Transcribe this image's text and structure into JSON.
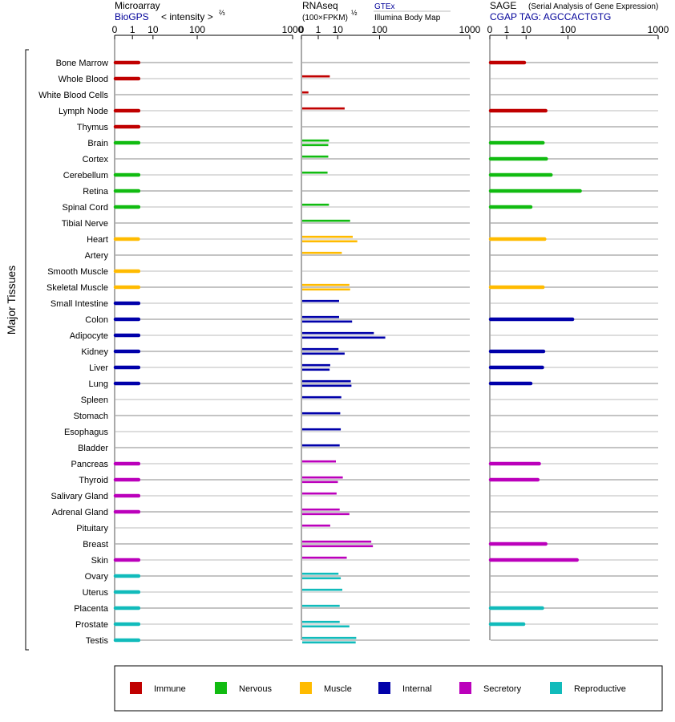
{
  "panels": {
    "microarray": {
      "title": "Microarray",
      "source": "BioGPS",
      "scale_label": "< intensity >",
      "scale_exp": "⅔"
    },
    "rnaseq": {
      "title": "RNAseq",
      "unit_label": "(100×FPKM)",
      "unit_exp": "½",
      "source1": "GTEx",
      "source2": "Illumina Body Map"
    },
    "sage": {
      "title": "SAGE",
      "subtitle": "(Serial Analysis of Gene Expression)",
      "tag_label": "CGAP TAG: AGCCACTGTG"
    }
  },
  "y_axis_label": "Major Tissues",
  "colors": {
    "Immune": "#c00000",
    "Nervous": "#11bb11",
    "Muscle": "#ffbb00",
    "Internal": "#0000aa",
    "Secretory": "#bb00bb",
    "Reproductive": "#11bbbb"
  },
  "legend": [
    "Immune",
    "Nervous",
    "Muscle",
    "Internal",
    "Secretory",
    "Reproductive"
  ],
  "chart_data": {
    "type": "bar",
    "x_scale": "power",
    "x_ticks": [
      "0",
      "1",
      "10",
      "100",
      "1000"
    ],
    "xlim": [
      0,
      1000
    ],
    "categories": [
      "Bone Marrow",
      "Whole Blood",
      "White Blood Cells",
      "Lymph Node",
      "Thymus",
      "Brain",
      "Cortex",
      "Cerebellum",
      "Retina",
      "Spinal Cord",
      "Tibial Nerve",
      "Heart",
      "Artery",
      "Smooth Muscle",
      "Skeletal Muscle",
      "Small Intestine",
      "Colon",
      "Adipocyte",
      "Kidney",
      "Liver",
      "Lung",
      "Spleen",
      "Stomach",
      "Esophagus",
      "Bladder",
      "Pancreas",
      "Thyroid",
      "Salivary Gland",
      "Adrenal Gland",
      "Pituitary",
      "Breast",
      "Skin",
      "Ovary",
      "Uterus",
      "Placenta",
      "Prostate",
      "Testis"
    ],
    "groups": [
      "Immune",
      "Immune",
      "Immune",
      "Immune",
      "Immune",
      "Nervous",
      "Nervous",
      "Nervous",
      "Nervous",
      "Nervous",
      "Nervous",
      "Muscle",
      "Muscle",
      "Muscle",
      "Muscle",
      "Internal",
      "Internal",
      "Internal",
      "Internal",
      "Internal",
      "Internal",
      "Internal",
      "Internal",
      "Internal",
      "Internal",
      "Secretory",
      "Secretory",
      "Secretory",
      "Secretory",
      "Secretory",
      "Secretory",
      "Secretory",
      "Reproductive",
      "Reproductive",
      "Reproductive",
      "Reproductive",
      "Reproductive"
    ],
    "series": [
      {
        "name": "Microarray",
        "values": [
          2.2,
          2.2,
          null,
          2.2,
          2.2,
          2.2,
          null,
          2.2,
          2.2,
          2.2,
          null,
          2.1,
          null,
          2.2,
          2.2,
          2.2,
          2.2,
          2.2,
          2.2,
          2.2,
          2.2,
          null,
          null,
          null,
          null,
          2.2,
          2.2,
          2.2,
          2.2,
          null,
          null,
          2.2,
          2.2,
          2.2,
          2.2,
          2.2,
          2.2
        ]
      },
      {
        "name": "GTEx",
        "values": [
          null,
          4.4,
          0.05,
          16,
          null,
          4,
          3.7,
          3.4,
          null,
          4,
          23,
          27,
          13,
          null,
          22,
          10.5,
          10.5,
          77,
          10,
          4.6,
          24,
          12.5,
          11.5,
          12,
          11,
          8,
          14,
          8.5,
          11,
          4.6,
          69,
          18.5,
          10,
          13.5,
          11,
          11,
          33
        ]
      },
      {
        "name": "Illumina Body Map",
        "values": [
          null,
          null,
          null,
          null,
          null,
          3.7,
          null,
          null,
          null,
          null,
          null,
          35,
          null,
          null,
          23,
          null,
          26,
          120,
          16,
          4.3,
          25,
          null,
          null,
          null,
          null,
          null,
          9.5,
          null,
          22,
          null,
          74,
          null,
          12,
          null,
          null,
          22,
          32
        ]
      },
      {
        "name": "SAGE",
        "values": [
          8,
          null,
          null,
          35,
          null,
          30,
          36,
          46,
          150,
          13.5,
          null,
          33,
          null,
          null,
          30,
          null,
          115,
          null,
          31,
          29,
          13.5,
          null,
          null,
          null,
          null,
          24,
          22,
          null,
          null,
          null,
          35,
          135,
          null,
          null,
          29,
          7.5,
          null
        ]
      }
    ]
  }
}
